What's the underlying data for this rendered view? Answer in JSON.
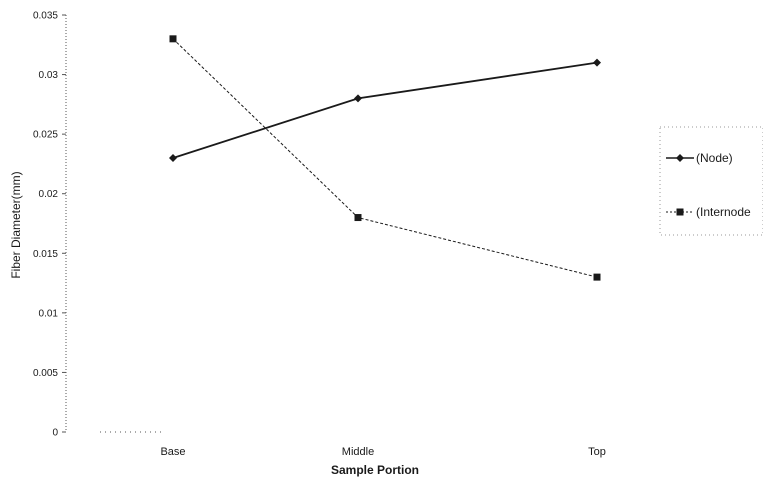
{
  "chart_data": {
    "type": "line",
    "title": "",
    "xlabel": "Sample Portion",
    "ylabel": "Fiber Diameter(mm)",
    "categories": [
      "Base",
      "Middle",
      "Top"
    ],
    "ylim": [
      0,
      0.035
    ],
    "yticks": [
      "0",
      "0.005",
      "0.01",
      "0.015",
      "0.02",
      "0.025",
      "0.03",
      "0.035"
    ],
    "grid": false,
    "legend_position": "right",
    "series": [
      {
        "name": "(Node)",
        "values": [
          0.023,
          0.028,
          0.031
        ],
        "marker": "diamond",
        "color": "#1a1a1a"
      },
      {
        "name": "(Internode",
        "values": [
          0.033,
          0.018,
          0.013
        ],
        "marker": "square",
        "color": "#1a1a1a"
      }
    ]
  }
}
